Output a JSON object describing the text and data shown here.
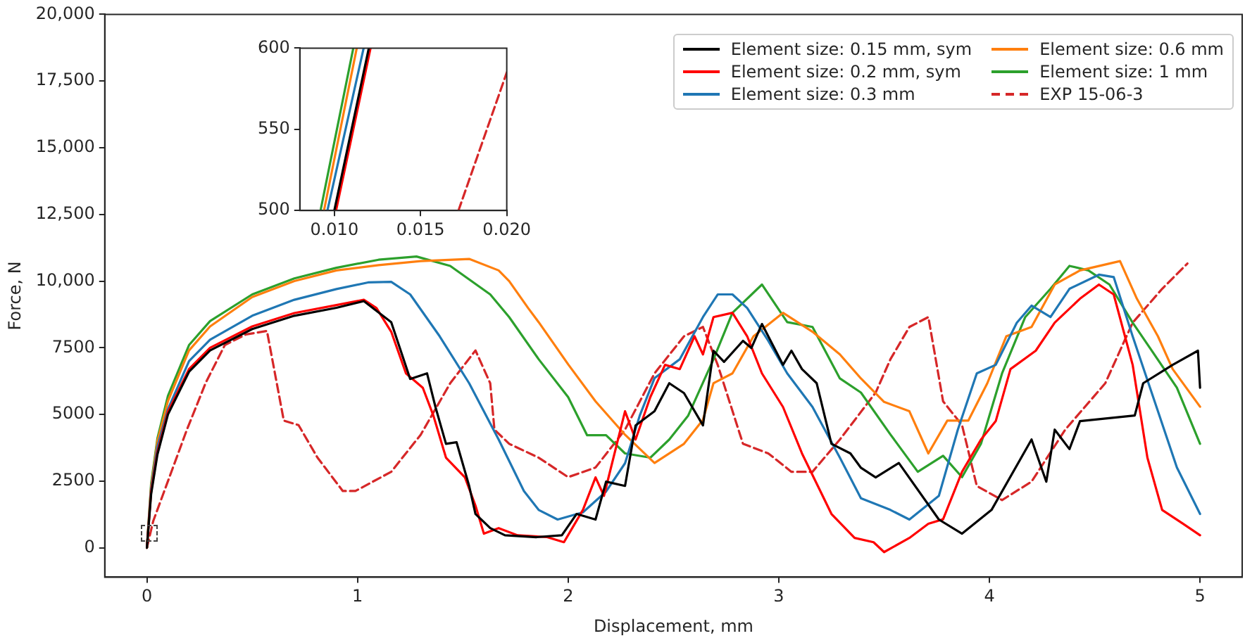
{
  "chart_data": [
    {
      "type": "line",
      "xlabel": "Displacement, mm",
      "ylabel": "Force, N",
      "xlim": [
        -0.2,
        5.2
      ],
      "xticks": [
        0,
        1,
        2,
        3,
        4,
        5
      ],
      "ylim": [
        -1100,
        20000
      ],
      "yticks": [
        0,
        2500,
        5000,
        7500,
        {
          "value": 10000,
          "label": "10,000"
        },
        {
          "value": 12500,
          "label": "12,500"
        },
        {
          "value": 15000,
          "label": "15,000"
        },
        {
          "value": 17500,
          "label": "17,500"
        },
        {
          "value": 20000,
          "label": "20,000"
        }
      ],
      "grid": false,
      "legend": "top right",
      "marker": "none",
      "series": [
        {
          "name": "Element size: 0.15 mm, sym",
          "color": "#000000",
          "x": [
            0,
            0.02,
            0.05,
            0.1,
            0.2,
            0.3,
            0.5,
            0.7,
            0.9,
            1.03,
            1.16,
            1.25,
            1.33,
            1.37,
            1.42,
            1.47,
            1.53,
            1.56,
            1.63,
            1.7,
            1.85,
            1.97,
            2.04,
            2.13,
            2.18,
            2.27,
            2.32,
            2.41,
            2.48,
            2.55,
            2.64,
            2.69,
            2.74,
            2.83,
            2.87,
            2.92,
            3.02,
            3.06,
            3.11,
            3.18,
            3.25,
            3.34,
            3.39,
            3.46,
            3.57,
            3.76,
            3.87,
            4.01,
            4.2,
            4.27,
            4.31,
            4.38,
            4.43,
            4.69,
            4.73,
            4.87,
            4.99,
            5.0
          ],
          "values": [
            0,
            2000,
            3500,
            5000,
            6600,
            7400,
            8200,
            8700,
            9000,
            9250,
            8460,
            6330,
            6540,
            5280,
            3900,
            3960,
            2320,
            1270,
            740,
            470,
            400,
            470,
            1270,
            1060,
            2480,
            2320,
            4590,
            5120,
            6170,
            5800,
            4590,
            7390,
            6970,
            7760,
            7490,
            8390,
            6860,
            7390,
            6700,
            6170,
            3900,
            3540,
            3000,
            2640,
            3180,
            1060,
            530,
            1420,
            4060,
            2480,
            4430,
            3700,
            4750,
            4960,
            6170,
            6860,
            7390,
            6000
          ]
        },
        {
          "name": "Element size: 0.2 mm, sym",
          "color": "#ff0000",
          "x": [
            0,
            0.02,
            0.05,
            0.1,
            0.2,
            0.3,
            0.5,
            0.7,
            0.9,
            1.03,
            1.09,
            1.16,
            1.23,
            1.31,
            1.36,
            1.42,
            1.51,
            1.56,
            1.6,
            1.67,
            1.76,
            1.9,
            1.98,
            2.07,
            2.13,
            2.17,
            2.27,
            2.32,
            2.39,
            2.46,
            2.53,
            2.6,
            2.64,
            2.69,
            2.78,
            2.85,
            2.92,
            3.02,
            3.11,
            3.25,
            3.36,
            3.45,
            3.5,
            3.62,
            3.71,
            3.78,
            3.87,
            3.96,
            4.03,
            4.1,
            4.22,
            4.31,
            4.43,
            4.52,
            4.59,
            4.68,
            4.75,
            4.82,
            4.92,
            5.0
          ],
          "values": [
            0,
            2100,
            3600,
            5100,
            6700,
            7500,
            8300,
            8800,
            9100,
            9300,
            8990,
            8100,
            6540,
            6000,
            4960,
            3380,
            2640,
            1580,
            530,
            740,
            470,
            400,
            210,
            1420,
            2640,
            1950,
            5120,
            4060,
            5650,
            6860,
            6700,
            7930,
            7250,
            8650,
            8810,
            7930,
            6540,
            5280,
            3540,
            1270,
            370,
            210,
            -160,
            370,
            900,
            1070,
            2850,
            4060,
            4750,
            6700,
            7390,
            8440,
            9340,
            9870,
            9500,
            6860,
            3380,
            1420,
            900,
            470
          ]
        },
        {
          "name": "Element size: 0.3 mm",
          "color": "#1f77b4",
          "x": [
            0,
            0.02,
            0.05,
            0.1,
            0.2,
            0.3,
            0.5,
            0.7,
            0.9,
            1.05,
            1.16,
            1.25,
            1.39,
            1.53,
            1.67,
            1.79,
            1.86,
            1.95,
            2.07,
            2.18,
            2.27,
            2.34,
            2.41,
            2.53,
            2.64,
            2.71,
            2.78,
            2.85,
            2.95,
            3.04,
            3.16,
            3.29,
            3.39,
            3.53,
            3.62,
            3.76,
            3.85,
            3.94,
            4.03,
            4.13,
            4.2,
            4.29,
            4.38,
            4.52,
            4.59,
            4.68,
            4.8,
            4.89,
            5.0
          ],
          "values": [
            0,
            2200,
            3800,
            5200,
            7000,
            7800,
            8700,
            9300,
            9700,
            9950,
            9970,
            9500,
            7930,
            6170,
            4060,
            2130,
            1420,
            1060,
            1330,
            2110,
            3170,
            4960,
            6360,
            7070,
            8650,
            9500,
            9500,
            8990,
            7760,
            6540,
            5280,
            3380,
            1860,
            1420,
            1060,
            1950,
            4430,
            6540,
            6860,
            8440,
            9080,
            8650,
            9710,
            10240,
            10150,
            7930,
            5120,
            3010,
            1270
          ]
        },
        {
          "name": "Element size: 0.6 mm",
          "color": "#ff7f0e",
          "x": [
            0,
            0.02,
            0.05,
            0.1,
            0.2,
            0.3,
            0.5,
            0.7,
            0.9,
            1.1,
            1.3,
            1.53,
            1.67,
            1.72,
            1.81,
            1.86,
            2.0,
            2.13,
            2.27,
            2.41,
            2.55,
            2.64,
            2.69,
            2.78,
            2.88,
            3.02,
            3.16,
            3.29,
            3.39,
            3.5,
            3.62,
            3.71,
            3.8,
            3.9,
            3.99,
            4.08,
            4.2,
            4.31,
            4.43,
            4.62,
            4.7,
            4.8,
            4.87,
            5.0
          ],
          "values": [
            0,
            2300,
            4000,
            5500,
            7400,
            8300,
            9400,
            10000,
            10400,
            10600,
            10750,
            10830,
            10400,
            10000,
            8990,
            8460,
            6880,
            5490,
            4240,
            3180,
            3900,
            4800,
            6170,
            6540,
            7930,
            8810,
            8100,
            7250,
            6350,
            5470,
            5120,
            3540,
            4770,
            4770,
            6170,
            7930,
            8280,
            9870,
            10400,
            10750,
            9340,
            7930,
            6700,
            5290
          ]
        },
        {
          "name": "Element size: 1 mm",
          "color": "#2ca02c",
          "x": [
            0,
            0.02,
            0.05,
            0.1,
            0.2,
            0.3,
            0.5,
            0.7,
            0.9,
            1.1,
            1.28,
            1.44,
            1.63,
            1.72,
            1.86,
            2.0,
            2.09,
            2.18,
            2.27,
            2.39,
            2.48,
            2.57,
            2.69,
            2.78,
            2.92,
            3.04,
            3.16,
            3.29,
            3.39,
            3.53,
            3.66,
            3.78,
            3.87,
            3.96,
            4.06,
            4.17,
            4.29,
            4.38,
            4.47,
            4.57,
            4.68,
            4.77,
            4.89,
            5.0
          ],
          "values": [
            0,
            2400,
            4100,
            5700,
            7600,
            8500,
            9500,
            10100,
            10500,
            10800,
            10920,
            10570,
            9500,
            8650,
            7070,
            5650,
            4220,
            4220,
            3540,
            3380,
            4060,
            4960,
            7070,
            8810,
            9870,
            8460,
            8280,
            6350,
            5820,
            4250,
            2850,
            3450,
            2650,
            3900,
            6540,
            8650,
            9710,
            10570,
            10400,
            9870,
            8440,
            7400,
            6000,
            3900
          ]
        },
        {
          "name": "EXP 15-06-3",
          "color": "#d62728",
          "line_style": "dashed",
          "x": [
            0,
            0.03,
            0.1,
            0.19,
            0.28,
            0.37,
            0.47,
            0.57,
            0.65,
            0.72,
            0.81,
            0.93,
            0.99,
            1.16,
            1.3,
            1.44,
            1.56,
            1.63,
            1.65,
            1.72,
            1.86,
            2.0,
            2.13,
            2.27,
            2.41,
            2.55,
            2.64,
            2.71,
            2.83,
            2.95,
            3.06,
            3.16,
            3.29,
            3.46,
            3.53,
            3.62,
            3.71,
            3.78,
            3.87,
            3.94,
            4.06,
            4.2,
            4.36,
            4.55,
            4.68,
            4.82,
            4.94
          ],
          "values": [
            0,
            1000,
            2500,
            4430,
            6200,
            7600,
            8000,
            8130,
            4770,
            4600,
            3380,
            2130,
            2130,
            2850,
            4240,
            6170,
            7400,
            6170,
            4430,
            3900,
            3380,
            2650,
            3010,
            4430,
            6540,
            7930,
            8280,
            6860,
            3900,
            3540,
            2850,
            2850,
            4060,
            5820,
            7070,
            8280,
            8650,
            5490,
            4600,
            2320,
            1790,
            2480,
            4430,
            6170,
            8440,
            9710,
            10660
          ]
        }
      ]
    },
    {
      "type": "line",
      "xlim": [
        0.008,
        0.02
      ],
      "xticks": [
        {
          "value": 0.01,
          "label": "0.010"
        },
        0.015,
        {
          "value": 0.02,
          "label": "0.020"
        }
      ],
      "ylim": [
        500,
        600
      ],
      "yticks": [
        500,
        550,
        600
      ],
      "grid": false,
      "marker": "none",
      "series": [
        {
          "color": "#000000",
          "x": [
            0.01,
            0.012
          ],
          "values": [
            500,
            600
          ]
        },
        {
          "color": "#ff0000",
          "x": [
            0.0101,
            0.0121
          ],
          "values": [
            500,
            600
          ]
        },
        {
          "color": "#1f77b4",
          "x": [
            0.0096,
            0.0117
          ],
          "values": [
            500,
            600
          ]
        },
        {
          "color": "#ff7f0e",
          "x": [
            0.0094,
            0.0113
          ],
          "values": [
            500,
            600
          ]
        },
        {
          "color": "#2ca02c",
          "x": [
            0.0092,
            0.0111
          ],
          "values": [
            500,
            600
          ]
        },
        {
          "color": "#d62728",
          "line_style": "dashed",
          "x": [
            0.0172,
            0.02
          ],
          "values": [
            500,
            585
          ]
        }
      ]
    }
  ]
}
